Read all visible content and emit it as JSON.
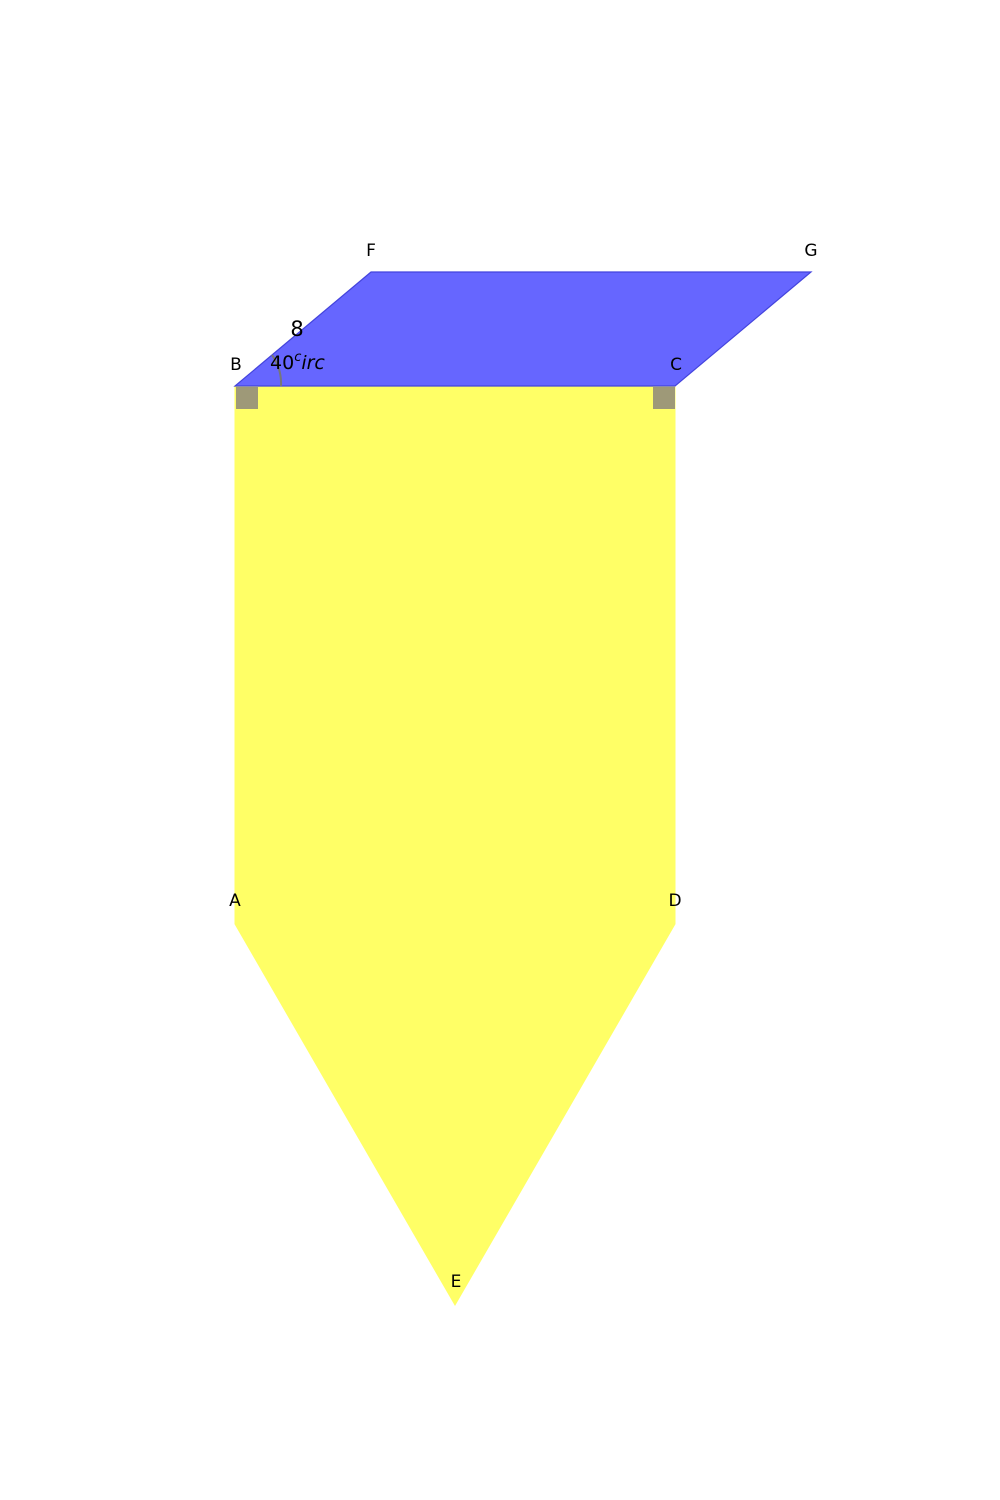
{
  "colors": {
    "pentagon_fill": "#ffff66",
    "parallelogram_fill": "#6666ff",
    "parallelogram_stroke": "#4444dd",
    "right_angle_marker": "#9e9978",
    "angle_arc": "#777777"
  },
  "points": {
    "A": "A",
    "B": "B",
    "C": "C",
    "D": "D",
    "E": "E",
    "F": "F",
    "G": "G"
  },
  "labels": {
    "side_bf": "8",
    "angle_fbc_value": "40",
    "angle_fbc_sup": "c",
    "angle_fbc_tail": "irc"
  }
}
